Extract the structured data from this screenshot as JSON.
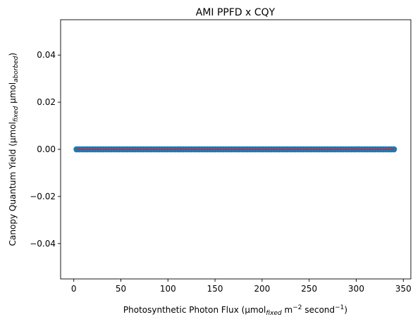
{
  "chart_data": {
    "type": "scatter",
    "title": "AMI PPFD x CQY",
    "xlabel": {
      "main": "Photosynthetic Photon Flux (μmol",
      "sub": "fixed",
      "mid": " m",
      "sup1": "−2",
      "mid2": " second",
      "sup2": "−1",
      "end": ")"
    },
    "ylabel": {
      "main": "Canopy Quantum Yield (μmol",
      "sub1": "fixed",
      "mid": " μmol",
      "sub2": "aborbed",
      "end": ")"
    },
    "xlim": [
      -14.0,
      358.0
    ],
    "ylim": [
      -0.055,
      0.055
    ],
    "xticks": [
      0,
      50,
      100,
      150,
      200,
      250,
      300,
      350
    ],
    "xtick_labels": [
      "0",
      "50",
      "100",
      "150",
      "200",
      "250",
      "300",
      "350"
    ],
    "yticks": [
      -0.04,
      -0.02,
      0.0,
      0.02,
      0.04
    ],
    "ytick_labels": [
      "−0.04",
      "−0.02",
      "0.00",
      "0.02",
      "0.04"
    ],
    "grid": false,
    "scatter": {
      "x_start": 3,
      "x_end": 340,
      "count": 120,
      "y": 0.0,
      "color": "#1f77b4"
    },
    "fit_line": {
      "x": [
        3,
        340
      ],
      "y": [
        0.0,
        0.0
      ],
      "color": "#d62728"
    }
  }
}
